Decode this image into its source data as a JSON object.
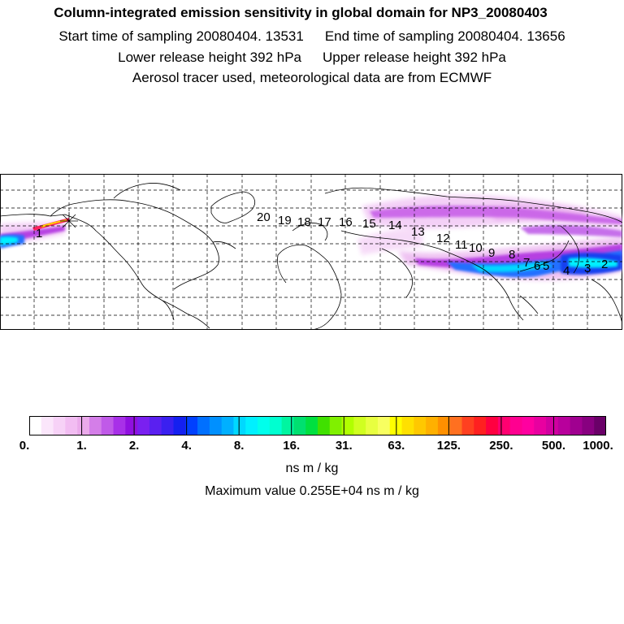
{
  "header": {
    "title": "Column-integrated emission sensitivity in global domain for NP3_20080403",
    "start_time": "Start time of sampling 20080404. 13531",
    "end_time": "End time of sampling 20080404. 13656",
    "lower_release": "Lower release height  392 hPa",
    "upper_release": "Upper release height  392 hPa",
    "note": "Aerosol tracer used, meteorological data are from ECMWF"
  },
  "map": {
    "day_markers": [
      "1",
      "2",
      "3",
      "4",
      "5",
      "6",
      "7",
      "8",
      "9",
      "10",
      "11",
      "12",
      "13",
      "14",
      "15",
      "16",
      "17",
      "18",
      "19",
      "20"
    ],
    "colors": {
      "plume_light": "#f2c8f5",
      "plume_mid": "#b030e0",
      "plume_blue": "#2070ff",
      "plume_cyan": "#00f0ff",
      "plume_hot": "#ff2060"
    }
  },
  "colorbar": {
    "tick_labels": [
      "0.",
      "1.",
      "2.",
      "4.",
      "8.",
      "16.",
      "31.",
      "63.",
      "125.",
      "250.",
      "500.",
      "1000."
    ],
    "colors": [
      "#ffffff",
      "#fbe6fb",
      "#f7d2f7",
      "#f2bdf2",
      "#ebaaeb",
      "#d47ee8",
      "#c05ae8",
      "#a830e8",
      "#9010e0",
      "#7a20f0",
      "#5a20f0",
      "#3a20f0",
      "#1420f0",
      "#0040ff",
      "#0070ff",
      "#0090ff",
      "#00b0ff",
      "#00d8ff",
      "#00f0ff",
      "#00ffec",
      "#00ffd0",
      "#00f5a0",
      "#00e070",
      "#00e040",
      "#40e000",
      "#80f000",
      "#b0ff00",
      "#d0ff20",
      "#e8ff40",
      "#f8ff60",
      "#ffff00",
      "#ffe000",
      "#ffc800",
      "#ffb000",
      "#ff9000",
      "#ff7020",
      "#ff4020",
      "#ff2020",
      "#ff0040",
      "#ff0070",
      "#ff0090",
      "#ff00a0",
      "#e800a0",
      "#d000a0",
      "#b8009c",
      "#a00090",
      "#880080",
      "#6a0068"
    ],
    "unit": "ns m / kg",
    "max_value": "Maximum value  0.255E+04 ns m / kg"
  }
}
